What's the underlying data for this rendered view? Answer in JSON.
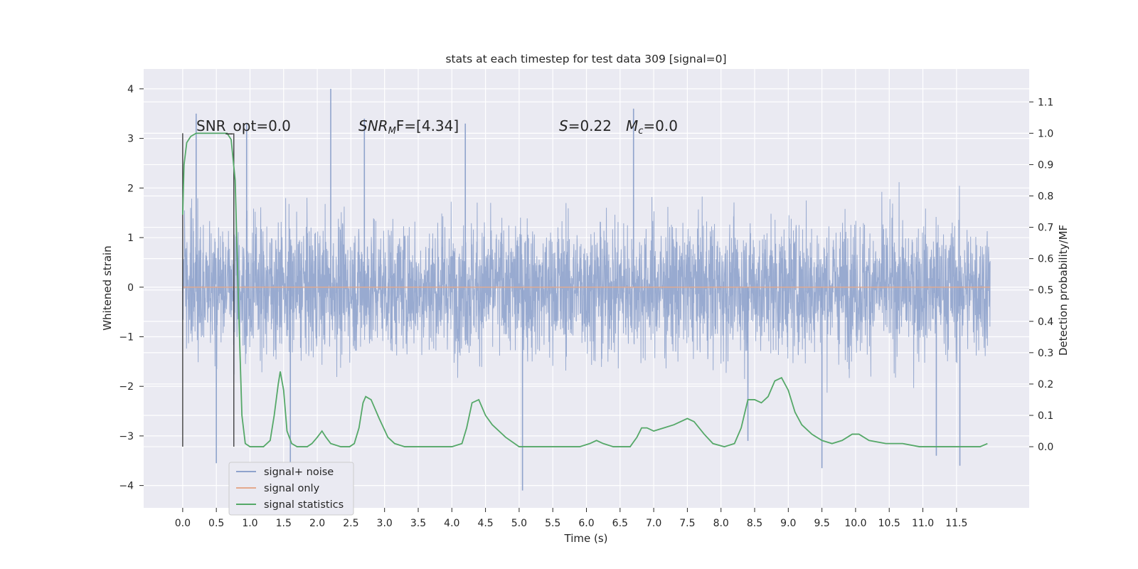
{
  "chart_data": {
    "type": "line",
    "title": "stats at each timestep for test data 309 [signal=0]",
    "xlabel": "Time (s)",
    "ylabel": "Whitened strain",
    "y2label": "Detection probability/MF",
    "xlim": [
      -0.58,
      12.58
    ],
    "ylim": [
      -4.45,
      4.4
    ],
    "y2lim": [
      -0.195,
      1.205
    ],
    "grid": true,
    "legend_placement": "lower-left",
    "x_ticks": [
      "0.0",
      "0.5",
      "1.0",
      "1.5",
      "2.0",
      "2.5",
      "3.0",
      "3.5",
      "4.0",
      "4.5",
      "5.0",
      "5.5",
      "6.0",
      "6.5",
      "7.0",
      "7.5",
      "8.0",
      "8.5",
      "9.0",
      "9.5",
      "10.0",
      "10.5",
      "11.0",
      "11.5"
    ],
    "y_ticks": [
      4,
      3,
      2,
      1,
      0,
      -1,
      -2,
      -3,
      -4
    ],
    "y_tick_labels": [
      "4",
      "3",
      "2",
      "1",
      "0",
      "−1",
      "−2",
      "−3",
      "−4"
    ],
    "y2_ticks": [
      1.1,
      1.0,
      0.9,
      0.8,
      0.7,
      0.6,
      0.5,
      0.4,
      0.3,
      0.2,
      0.1,
      0.0
    ],
    "y2_tick_labels": [
      "1.1",
      "1.0",
      "0.9",
      "0.8",
      "0.7",
      "0.6",
      "0.5",
      "0.4",
      "0.3",
      "0.2",
      "0.1",
      "0.0"
    ],
    "annotations": {
      "snr_opt": "SNR_opt=0.0",
      "snr_mf_main": "SNR",
      "snr_mf_sub": "M",
      "snr_mf_rest": "F=[4.34]",
      "s_var": "S",
      "s_val": "=0.22",
      "mc_var": "M",
      "mc_sub": "c",
      "mc_val": "=0.0"
    },
    "vertical_markers": [
      0.0,
      0.76
    ],
    "series": [
      {
        "name": "signal+ noise",
        "color": "#8fa3cc",
        "x_range": [
          0.0,
          12.0
        ],
        "band_amplitude": 1.85,
        "peak_extremes": [
          {
            "x": 0.2,
            "y": 3.5
          },
          {
            "x": 0.5,
            "y": -3.55
          },
          {
            "x": 0.95,
            "y": 3.3
          },
          {
            "x": 1.6,
            "y": -3.8
          },
          {
            "x": 2.2,
            "y": 4.0
          },
          {
            "x": 2.7,
            "y": 3.4
          },
          {
            "x": 4.2,
            "y": 3.3
          },
          {
            "x": 5.05,
            "y": -4.1
          },
          {
            "x": 6.7,
            "y": 3.6
          },
          {
            "x": 8.4,
            "y": -3.1
          },
          {
            "x": 9.5,
            "y": -3.65
          },
          {
            "x": 11.2,
            "y": -3.4
          },
          {
            "x": 11.55,
            "y": -3.6
          }
        ]
      },
      {
        "name": "signal only",
        "color": "#e4a98d",
        "points": [
          [
            0.0,
            0.0
          ],
          [
            12.0,
            0.0
          ]
        ]
      },
      {
        "name": "signal statistics",
        "color": "#55a868",
        "axis": "right",
        "points": [
          [
            0.0,
            0.74
          ],
          [
            0.02,
            0.9
          ],
          [
            0.06,
            0.97
          ],
          [
            0.12,
            0.99
          ],
          [
            0.2,
            1.0
          ],
          [
            0.5,
            1.0
          ],
          [
            0.66,
            1.0
          ],
          [
            0.72,
            0.98
          ],
          [
            0.78,
            0.85
          ],
          [
            0.83,
            0.45
          ],
          [
            0.88,
            0.1
          ],
          [
            0.93,
            0.01
          ],
          [
            1.0,
            0.0
          ],
          [
            1.2,
            0.0
          ],
          [
            1.3,
            0.02
          ],
          [
            1.36,
            0.1
          ],
          [
            1.42,
            0.2
          ],
          [
            1.45,
            0.24
          ],
          [
            1.5,
            0.18
          ],
          [
            1.55,
            0.05
          ],
          [
            1.62,
            0.01
          ],
          [
            1.7,
            0.0
          ],
          [
            1.85,
            0.0
          ],
          [
            1.92,
            0.01
          ],
          [
            2.0,
            0.03
          ],
          [
            2.07,
            0.05
          ],
          [
            2.13,
            0.03
          ],
          [
            2.2,
            0.01
          ],
          [
            2.35,
            0.0
          ],
          [
            2.48,
            0.0
          ],
          [
            2.55,
            0.01
          ],
          [
            2.62,
            0.06
          ],
          [
            2.68,
            0.14
          ],
          [
            2.72,
            0.16
          ],
          [
            2.8,
            0.15
          ],
          [
            2.92,
            0.09
          ],
          [
            3.05,
            0.03
          ],
          [
            3.15,
            0.01
          ],
          [
            3.3,
            0.0
          ],
          [
            4.0,
            0.0
          ],
          [
            4.15,
            0.01
          ],
          [
            4.22,
            0.06
          ],
          [
            4.3,
            0.14
          ],
          [
            4.4,
            0.15
          ],
          [
            4.5,
            0.1
          ],
          [
            4.6,
            0.07
          ],
          [
            4.8,
            0.03
          ],
          [
            5.0,
            0.0
          ],
          [
            5.9,
            0.0
          ],
          [
            6.05,
            0.01
          ],
          [
            6.15,
            0.02
          ],
          [
            6.25,
            0.01
          ],
          [
            6.4,
            0.0
          ],
          [
            6.65,
            0.0
          ],
          [
            6.75,
            0.03
          ],
          [
            6.82,
            0.06
          ],
          [
            6.9,
            0.06
          ],
          [
            7.0,
            0.05
          ],
          [
            7.15,
            0.06
          ],
          [
            7.3,
            0.07
          ],
          [
            7.5,
            0.09
          ],
          [
            7.6,
            0.08
          ],
          [
            7.75,
            0.04
          ],
          [
            7.88,
            0.01
          ],
          [
            8.05,
            0.0
          ],
          [
            8.2,
            0.01
          ],
          [
            8.3,
            0.06
          ],
          [
            8.4,
            0.15
          ],
          [
            8.5,
            0.15
          ],
          [
            8.6,
            0.14
          ],
          [
            8.7,
            0.16
          ],
          [
            8.8,
            0.21
          ],
          [
            8.9,
            0.22
          ],
          [
            9.0,
            0.18
          ],
          [
            9.1,
            0.11
          ],
          [
            9.2,
            0.07
          ],
          [
            9.35,
            0.04
          ],
          [
            9.5,
            0.02
          ],
          [
            9.65,
            0.01
          ],
          [
            9.8,
            0.02
          ],
          [
            9.95,
            0.04
          ],
          [
            10.05,
            0.04
          ],
          [
            10.2,
            0.02
          ],
          [
            10.45,
            0.01
          ],
          [
            10.7,
            0.01
          ],
          [
            10.95,
            0.0
          ],
          [
            11.1,
            0.0
          ],
          [
            11.3,
            0.0
          ],
          [
            11.6,
            0.0
          ],
          [
            11.85,
            0.0
          ],
          [
            11.96,
            0.01
          ]
        ]
      }
    ]
  }
}
